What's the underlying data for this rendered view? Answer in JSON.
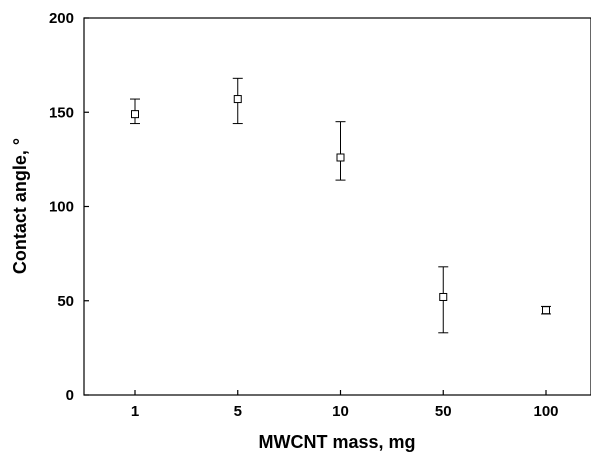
{
  "chart_data": {
    "type": "scatter",
    "title": "",
    "xlabel": "MWCNT mass, mg",
    "ylabel": "Contact angle, °",
    "categories": [
      "1",
      "5",
      "10",
      "50",
      "100"
    ],
    "series": [
      {
        "values": [
          149,
          157,
          126,
          52,
          45
        ],
        "error_low": [
          144,
          144,
          114,
          33,
          43
        ],
        "error_high": [
          157,
          168,
          145,
          68,
          47
        ]
      }
    ],
    "ylim": [
      0,
      200
    ],
    "yticks": [
      "0",
      "50",
      "100",
      "150",
      "200"
    ],
    "grid": false,
    "legend": "none",
    "marker": "open-square",
    "colors": {
      "axis": "#000000",
      "marker": "#000000",
      "background": "#ffffff"
    }
  }
}
